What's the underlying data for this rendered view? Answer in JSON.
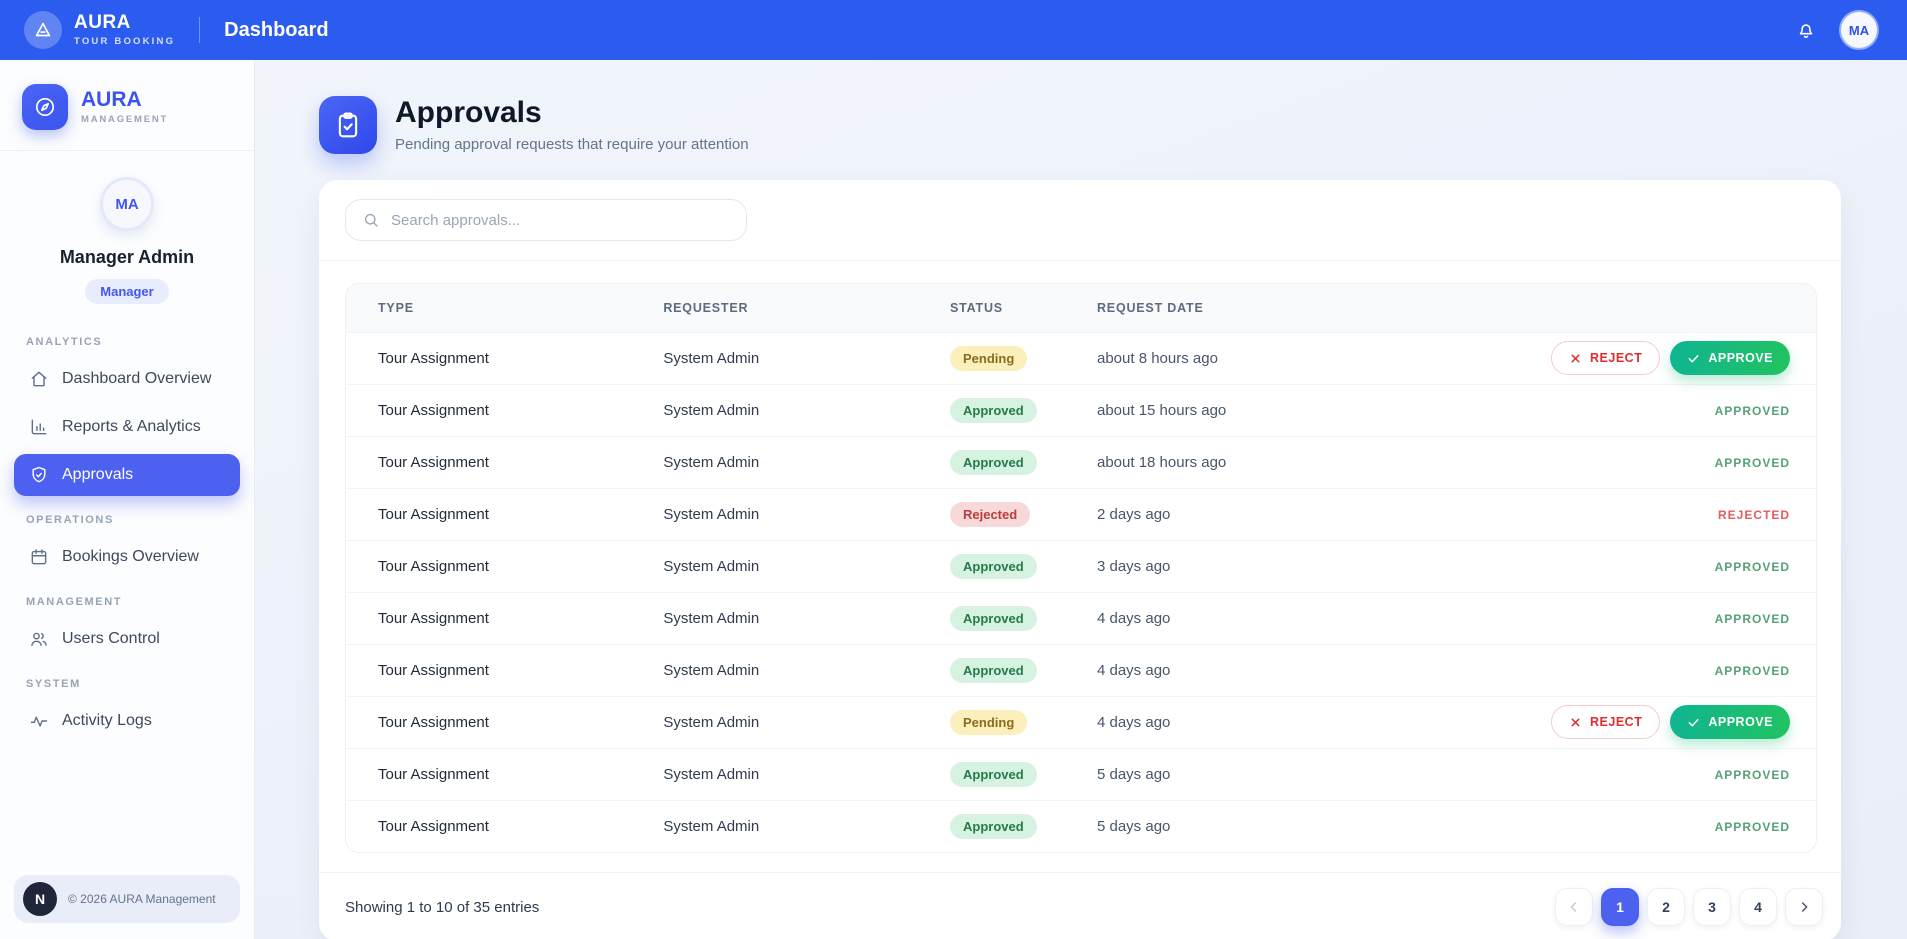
{
  "topbar": {
    "brand_name": "AURA",
    "brand_tagline": "TOUR BOOKING",
    "page_title": "Dashboard",
    "user_initials": "MA"
  },
  "sidebar": {
    "brand_name": "AURA",
    "brand_tagline": "MANAGEMENT",
    "profile": {
      "initials": "MA",
      "name": "Manager Admin",
      "role": "Manager"
    },
    "sections": [
      {
        "label": "ANALYTICS",
        "items": [
          {
            "label": "Dashboard Overview",
            "icon": "home",
            "active": false
          },
          {
            "label": "Reports & Analytics",
            "icon": "chart",
            "active": false
          },
          {
            "label": "Approvals",
            "icon": "shield",
            "active": true
          }
        ]
      },
      {
        "label": "OPERATIONS",
        "items": [
          {
            "label": "Bookings Overview",
            "icon": "calendar",
            "active": false
          }
        ]
      },
      {
        "label": "MANAGEMENT",
        "items": [
          {
            "label": "Users Control",
            "icon": "users",
            "active": false
          }
        ]
      },
      {
        "label": "SYSTEM",
        "items": [
          {
            "label": "Activity Logs",
            "icon": "activity",
            "active": false
          }
        ]
      }
    ],
    "footer_badge": "N",
    "footer_text": "© 2026 AURA Management"
  },
  "main": {
    "title": "Approvals",
    "subtitle": "Pending approval requests that require your attention",
    "search_placeholder": "Search approvals...",
    "table": {
      "columns": [
        "TYPE",
        "REQUESTER",
        "STATUS",
        "REQUEST DATE"
      ],
      "action_labels": {
        "reject": "REJECT",
        "approve": "APPROVE",
        "approved": "APPROVED",
        "rejected": "REJECTED"
      },
      "rows": [
        {
          "type": "Tour Assignment",
          "requester": "System Admin",
          "status": "Pending",
          "date": "about 8 hours ago"
        },
        {
          "type": "Tour Assignment",
          "requester": "System Admin",
          "status": "Approved",
          "date": "about 15 hours ago"
        },
        {
          "type": "Tour Assignment",
          "requester": "System Admin",
          "status": "Approved",
          "date": "about 18 hours ago"
        },
        {
          "type": "Tour Assignment",
          "requester": "System Admin",
          "status": "Rejected",
          "date": "2 days ago"
        },
        {
          "type": "Tour Assignment",
          "requester": "System Admin",
          "status": "Approved",
          "date": "3 days ago"
        },
        {
          "type": "Tour Assignment",
          "requester": "System Admin",
          "status": "Approved",
          "date": "4 days ago"
        },
        {
          "type": "Tour Assignment",
          "requester": "System Admin",
          "status": "Approved",
          "date": "4 days ago"
        },
        {
          "type": "Tour Assignment",
          "requester": "System Admin",
          "status": "Pending",
          "date": "4 days ago"
        },
        {
          "type": "Tour Assignment",
          "requester": "System Admin",
          "status": "Approved",
          "date": "5 days ago"
        },
        {
          "type": "Tour Assignment",
          "requester": "System Admin",
          "status": "Approved",
          "date": "5 days ago"
        }
      ]
    },
    "footer_summary": "Showing 1 to 10 of 35 entries",
    "pagination": {
      "pages": [
        "1",
        "2",
        "3",
        "4"
      ],
      "active_page": "1"
    }
  },
  "colors": {
    "topbar_blue": "#2b5cef",
    "accent_blue": "#4c61f0",
    "approve_green": "#1bbd77",
    "reject_red": "#e02d2d",
    "pending_badge_bg": "#fbf0bc",
    "approved_badge_bg": "#d6f3e2",
    "rejected_badge_bg": "#f8d9d9"
  }
}
